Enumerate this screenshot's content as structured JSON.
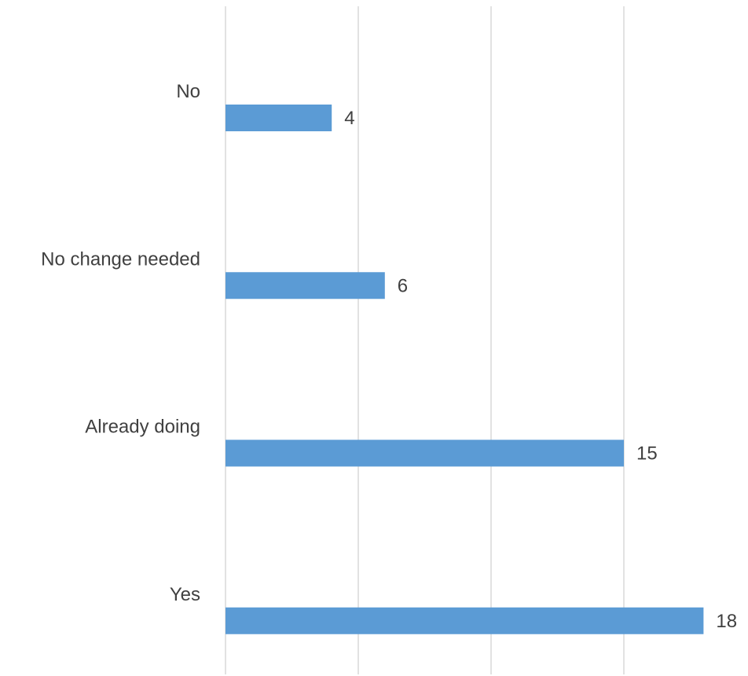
{
  "chart_data": {
    "type": "bar",
    "orientation": "horizontal",
    "categories": [
      "No",
      "No change needed",
      "Already doing",
      "Yes"
    ],
    "values": [
      4,
      6,
      15,
      18
    ],
    "title": "",
    "xlabel": "",
    "ylabel": "",
    "xlim": [
      0,
      18
    ],
    "grid": true,
    "gridlines_at": [
      0,
      5,
      10,
      15
    ],
    "legend": "none",
    "show_value_axis_ticks": false,
    "bar_color": "#5b9bd5",
    "grid_color": "#d9d9d9",
    "label_color": "#404040"
  }
}
